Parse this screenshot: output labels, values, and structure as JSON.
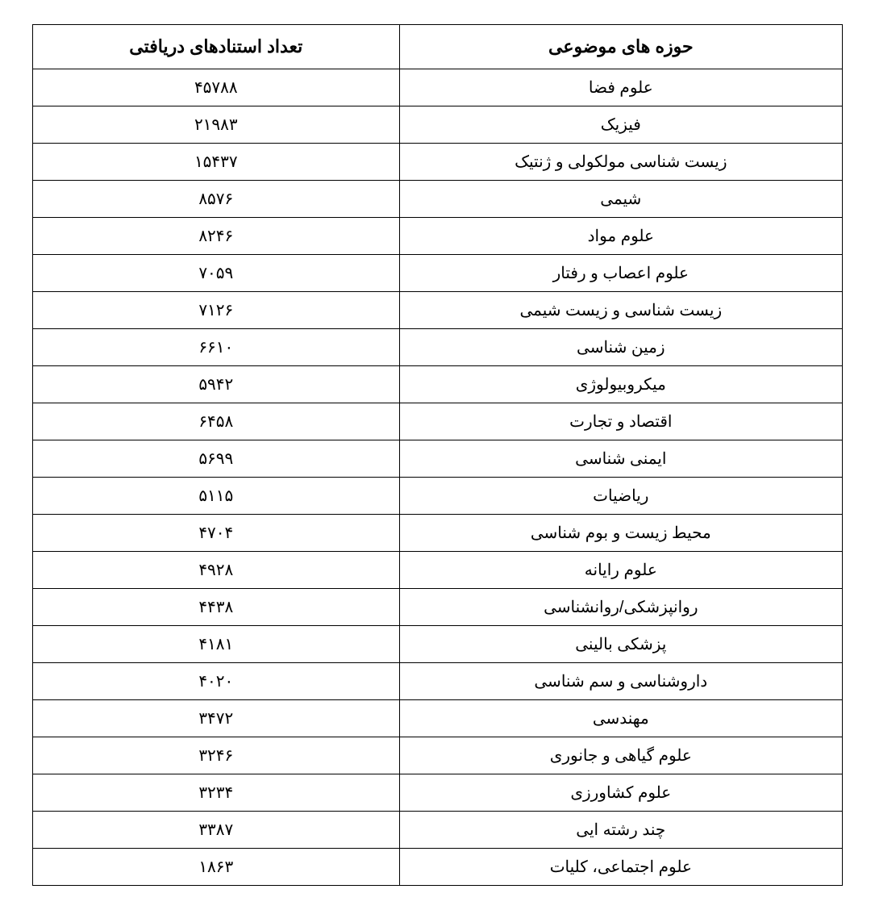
{
  "table": {
    "type": "table",
    "background_color": "#ffffff",
    "border_color": "#000000",
    "border_width": 1.5,
    "text_color": "#000000",
    "header_fontsize": 22,
    "cell_fontsize": 20,
    "columns": [
      {
        "key": "count",
        "label": "تعداد استنادهای دریافتی",
        "align": "center",
        "width": "50%"
      },
      {
        "key": "subject",
        "label": "حوزه های موضوعی",
        "align": "center",
        "width": "50%"
      }
    ],
    "rows": [
      {
        "count": "۴۵۷۸۸",
        "subject": "علوم فضا"
      },
      {
        "count": "۲۱۹۸۳",
        "subject": "فیزیک"
      },
      {
        "count": "۱۵۴۳۷",
        "subject": "زیست شناسی مولکولی و ژنتیک"
      },
      {
        "count": "۸۵۷۶",
        "subject": "شیمی"
      },
      {
        "count": "۸۲۴۶",
        "subject": "علوم مواد"
      },
      {
        "count": "۷۰۵۹",
        "subject": "علوم اعصاب و رفتار"
      },
      {
        "count": "۷۱۲۶",
        "subject": "زیست شناسی و زیست شیمی"
      },
      {
        "count": "۶۶۱۰",
        "subject": "زمین شناسی"
      },
      {
        "count": "۵۹۴۲",
        "subject": "میکروبیولوژی"
      },
      {
        "count": "۶۴۵۸",
        "subject": "اقتصاد و تجارت"
      },
      {
        "count": "۵۶۹۹",
        "subject": "ایمنی شناسی"
      },
      {
        "count": "۵۱۱۵",
        "subject": "ریاضیات"
      },
      {
        "count": "۴۷۰۴",
        "subject": "محیط زیست و بوم شناسی"
      },
      {
        "count": "۴۹۲۸",
        "subject": "علوم رایانه"
      },
      {
        "count": "۴۴۳۸",
        "subject": "روانپزشکی/روانشناسی"
      },
      {
        "count": "۴۱۸۱",
        "subject": "پزشکی بالینی"
      },
      {
        "count": "۴۰۲۰",
        "subject": "داروشناسی و سم شناسی"
      },
      {
        "count": "۳۴۷۲",
        "subject": "مهندسی"
      },
      {
        "count": "۳۲۴۶",
        "subject": "علوم گیاهی و جانوری"
      },
      {
        "count": "۳۲۳۴",
        "subject": "علوم کشاورزی"
      },
      {
        "count": "۳۳۸۷",
        "subject": "چند رشته ایی"
      },
      {
        "count": "۱۸۶۳",
        "subject": "علوم اجتماعی، کلیات"
      }
    ]
  }
}
